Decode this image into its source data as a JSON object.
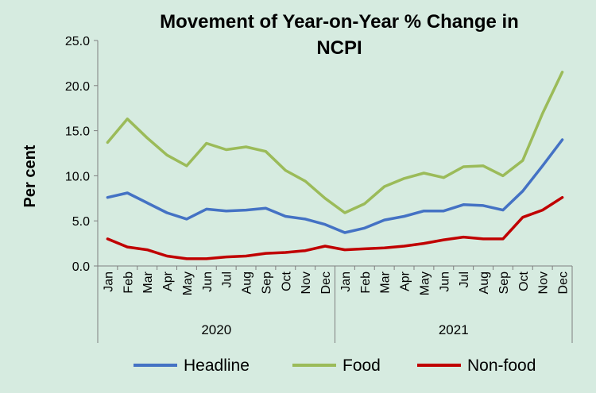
{
  "chart_data": {
    "type": "line",
    "title": "Movement of Year-on-Year % Change in NCPI",
    "title_lines": [
      "Movement of Year-on-Year % Change in",
      "NCPI"
    ],
    "ylabel": "Per cent",
    "xlabel": "",
    "ylim": [
      0,
      25
    ],
    "yticks": [
      "0.0",
      "5.0",
      "10.0",
      "15.0",
      "20.0",
      "25.0"
    ],
    "grid": false,
    "legend_position": "bottom",
    "categories": [
      "Jan",
      "Feb",
      "Mar",
      "Apr",
      "May",
      "Jun",
      "Jul",
      "Aug",
      "Sep",
      "Oct",
      "Nov",
      "Dec",
      "Jan",
      "Feb",
      "Mar",
      "Apr",
      "May",
      "Jun",
      "Jul",
      "Aug",
      "Sep",
      "Oct",
      "Nov",
      "Dec"
    ],
    "year_groups": [
      {
        "label": "2020",
        "start": 0,
        "end": 11
      },
      {
        "label": "2021",
        "start": 12,
        "end": 23
      }
    ],
    "series": [
      {
        "name": "Headline",
        "color": "#4472c4",
        "values": [
          7.6,
          8.1,
          7.0,
          5.9,
          5.2,
          6.3,
          6.1,
          6.2,
          6.4,
          5.5,
          5.2,
          4.6,
          3.7,
          4.2,
          5.1,
          5.5,
          6.1,
          6.1,
          6.8,
          6.7,
          6.2,
          8.3,
          11.1,
          14.0
        ]
      },
      {
        "name": "Food",
        "color": "#9bbb59",
        "values": [
          13.7,
          16.3,
          14.2,
          12.3,
          11.1,
          13.6,
          12.9,
          13.2,
          12.7,
          10.6,
          9.4,
          7.5,
          5.9,
          6.9,
          8.8,
          9.7,
          10.3,
          9.8,
          11.0,
          11.1,
          10.0,
          11.7,
          16.9,
          21.5
        ]
      },
      {
        "name": "Non-food",
        "color": "#c00000",
        "values": [
          3.0,
          2.1,
          1.8,
          1.1,
          0.8,
          0.8,
          1.0,
          1.1,
          1.4,
          1.5,
          1.7,
          2.2,
          1.8,
          1.9,
          2.0,
          2.2,
          2.5,
          2.9,
          3.2,
          3.0,
          3.0,
          5.4,
          6.2,
          7.6
        ]
      }
    ]
  }
}
